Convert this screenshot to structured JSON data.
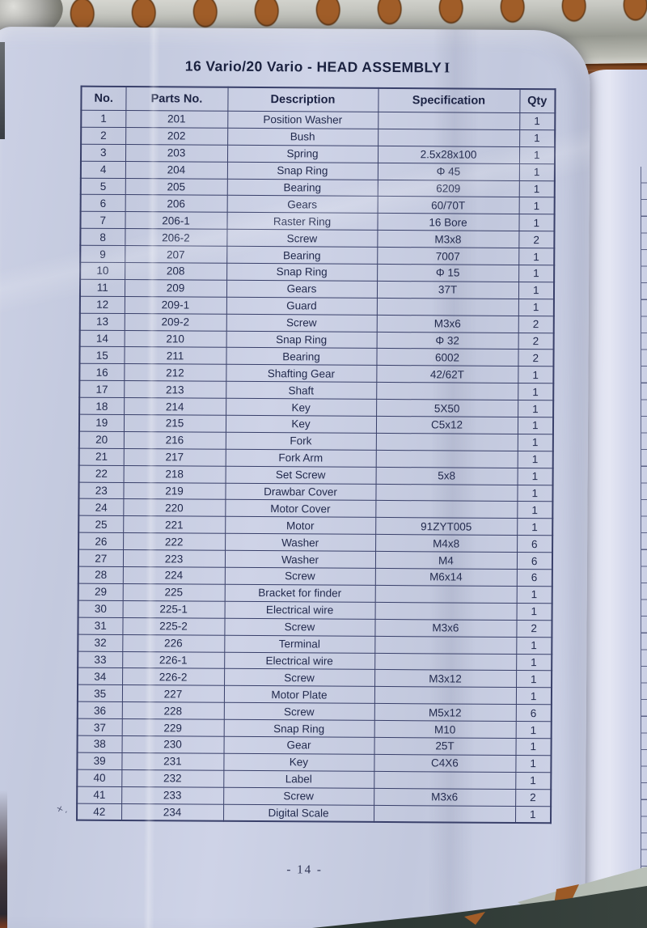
{
  "page": {
    "title_main": "16 Vario/20 Vario - HEAD ASSEMBLY",
    "title_numeral": "I",
    "page_number": "- 14 -",
    "handwritten_mark": "×ˏ"
  },
  "table": {
    "columns": [
      "No.",
      "Parts No.",
      "Description",
      "Specification",
      "Qty"
    ],
    "rows": [
      [
        "1",
        "201",
        "Position Washer",
        "",
        "1"
      ],
      [
        "2",
        "202",
        "Bush",
        "",
        "1"
      ],
      [
        "3",
        "203",
        "Spring",
        "2.5x28x100",
        "1"
      ],
      [
        "4",
        "204",
        "Snap Ring",
        "Φ 45",
        "1"
      ],
      [
        "5",
        "205",
        "Bearing",
        "6209",
        "1"
      ],
      [
        "6",
        "206",
        "Gears",
        "60/70T",
        "1"
      ],
      [
        "7",
        "206-1",
        "Raster Ring",
        "16 Bore",
        "1"
      ],
      [
        "8",
        "206-2",
        "Screw",
        "M3x8",
        "2"
      ],
      [
        "9",
        "207",
        "Bearing",
        "7007",
        "1"
      ],
      [
        "10",
        "208",
        "Snap Ring",
        "Φ 15",
        "1"
      ],
      [
        "11",
        "209",
        "Gears",
        "37T",
        "1"
      ],
      [
        "12",
        "209-1",
        "Guard",
        "",
        "1"
      ],
      [
        "13",
        "209-2",
        "Screw",
        "M3x6",
        "2"
      ],
      [
        "14",
        "210",
        "Snap Ring",
        "Φ 32",
        "2"
      ],
      [
        "15",
        "211",
        "Bearing",
        "6002",
        "2"
      ],
      [
        "16",
        "212",
        "Shafting Gear",
        "42/62T",
        "1"
      ],
      [
        "17",
        "213",
        "Shaft",
        "",
        "1"
      ],
      [
        "18",
        "214",
        "Key",
        "5X50",
        "1"
      ],
      [
        "19",
        "215",
        "Key",
        "C5x12",
        "1"
      ],
      [
        "20",
        "216",
        "Fork",
        "",
        "1"
      ],
      [
        "21",
        "217",
        "Fork Arm",
        "",
        "1"
      ],
      [
        "22",
        "218",
        "Set Screw",
        "5x8",
        "1"
      ],
      [
        "23",
        "219",
        "Drawbar Cover",
        "",
        "1"
      ],
      [
        "24",
        "220",
        "Motor Cover",
        "",
        "1"
      ],
      [
        "25",
        "221",
        "Motor",
        "91ZYT005",
        "1"
      ],
      [
        "26",
        "222",
        "Washer",
        "M4x8",
        "6"
      ],
      [
        "27",
        "223",
        "Washer",
        "M4",
        "6"
      ],
      [
        "28",
        "224",
        "Screw",
        "M6x14",
        "6"
      ],
      [
        "29",
        "225",
        "Bracket for finder",
        "",
        "1"
      ],
      [
        "30",
        "225-1",
        "Electrical wire",
        "",
        "1"
      ],
      [
        "31",
        "225-2",
        "Screw",
        "M3x6",
        "2"
      ],
      [
        "32",
        "226",
        "Terminal",
        "",
        "1"
      ],
      [
        "33",
        "226-1",
        "Electrical wire",
        "",
        "1"
      ],
      [
        "34",
        "226-2",
        "Screw",
        "M3x12",
        "1"
      ],
      [
        "35",
        "227",
        "Motor Plate",
        "",
        "1"
      ],
      [
        "36",
        "228",
        "Screw",
        "M5x12",
        "6"
      ],
      [
        "37",
        "229",
        "Snap Ring",
        "M10",
        "1"
      ],
      [
        "38",
        "230",
        "Gear",
        "25T",
        "1"
      ],
      [
        "39",
        "231",
        "Key",
        "C4X6",
        "1"
      ],
      [
        "40",
        "232",
        "Label",
        "",
        "1"
      ],
      [
        "41",
        "233",
        "Screw",
        "M3x6",
        "2"
      ],
      [
        "42",
        "234",
        "Digital Scale",
        "",
        "1"
      ]
    ]
  },
  "colors": {
    "paper": "#cbd0e4",
    "ink": "#222a4d",
    "table_line": "#39406a",
    "wood": "#a05a26",
    "metal": "#b9bab2"
  }
}
